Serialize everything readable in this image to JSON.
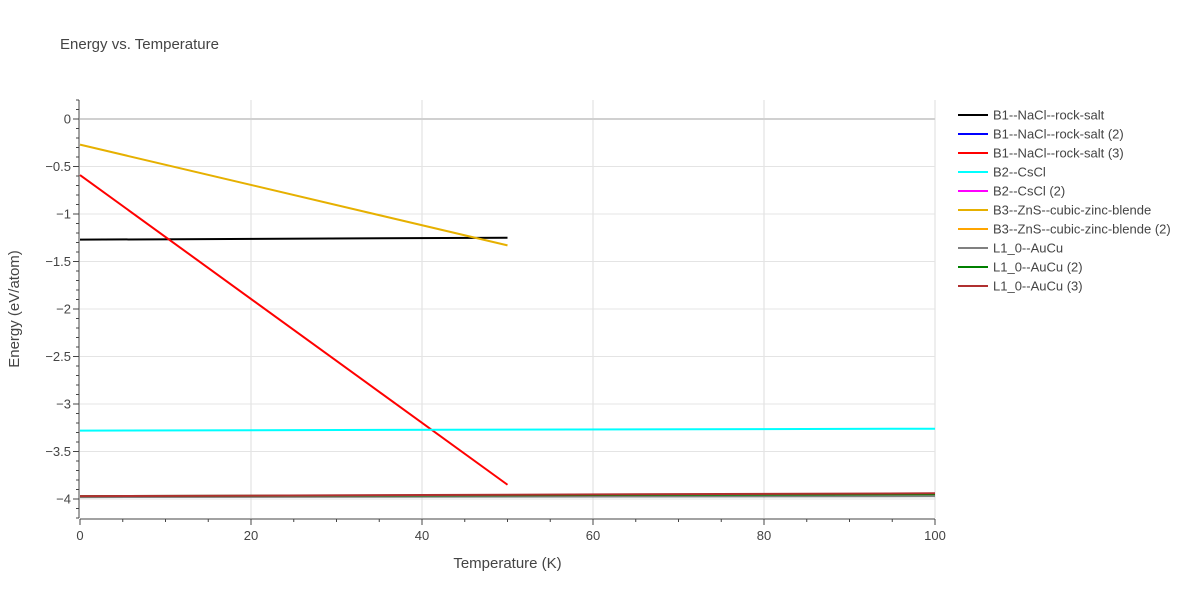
{
  "chart_data": {
    "type": "line",
    "title": "Energy vs. Temperature",
    "xlabel": "Temperature (K)",
    "ylabel": "Energy (eV/atom)",
    "xlim": [
      0,
      100
    ],
    "ylim": [
      -4.2,
      0.2
    ],
    "xticks": [
      0,
      20,
      40,
      60,
      80,
      100
    ],
    "yticks": [
      0,
      -0.5,
      -1,
      -1.5,
      -2,
      -2.5,
      -3,
      -3.5,
      -4
    ],
    "ytick_labels": [
      "0",
      "−0.5",
      "−1",
      "−1.5",
      "−2",
      "−2.5",
      "−3",
      "−3.5",
      "−4"
    ],
    "grid": true,
    "legend_position": "right",
    "series": [
      {
        "name": "B1--NaCl--rock-salt",
        "color": "#000000",
        "x": [
          0,
          50
        ],
        "y": [
          -1.27,
          -1.25
        ]
      },
      {
        "name": "B1--NaCl--rock-salt (2)",
        "color": "#0000ff",
        "x": [],
        "y": []
      },
      {
        "name": "B1--NaCl--rock-salt (3)",
        "color": "#ff0000",
        "x": [
          0,
          50
        ],
        "y": [
          -0.59,
          -3.85
        ]
      },
      {
        "name": "B2--CsCl",
        "color": "#00ffff",
        "x": [
          0,
          100
        ],
        "y": [
          -3.28,
          -3.26
        ]
      },
      {
        "name": "B2--CsCl (2)",
        "color": "#ff00ff",
        "x": [],
        "y": []
      },
      {
        "name": "B3--ZnS--cubic-zinc-blende",
        "color": "#e6b000",
        "x": [
          0,
          50
        ],
        "y": [
          -0.27,
          -1.33
        ]
      },
      {
        "name": "B3--ZnS--cubic-zinc-blende (2)",
        "color": "#ffa500",
        "x": [],
        "y": []
      },
      {
        "name": "L1_0--AuCu",
        "color": "#808080",
        "x": [
          0,
          100
        ],
        "y": [
          -3.98,
          -3.97
        ]
      },
      {
        "name": "L1_0--AuCu (2)",
        "color": "#008000",
        "x": [
          0,
          100
        ],
        "y": [
          -3.97,
          -3.95
        ]
      },
      {
        "name": "L1_0--AuCu (3)",
        "color": "#b03030",
        "x": [
          0,
          100
        ],
        "y": [
          -3.97,
          -3.94
        ]
      }
    ]
  }
}
